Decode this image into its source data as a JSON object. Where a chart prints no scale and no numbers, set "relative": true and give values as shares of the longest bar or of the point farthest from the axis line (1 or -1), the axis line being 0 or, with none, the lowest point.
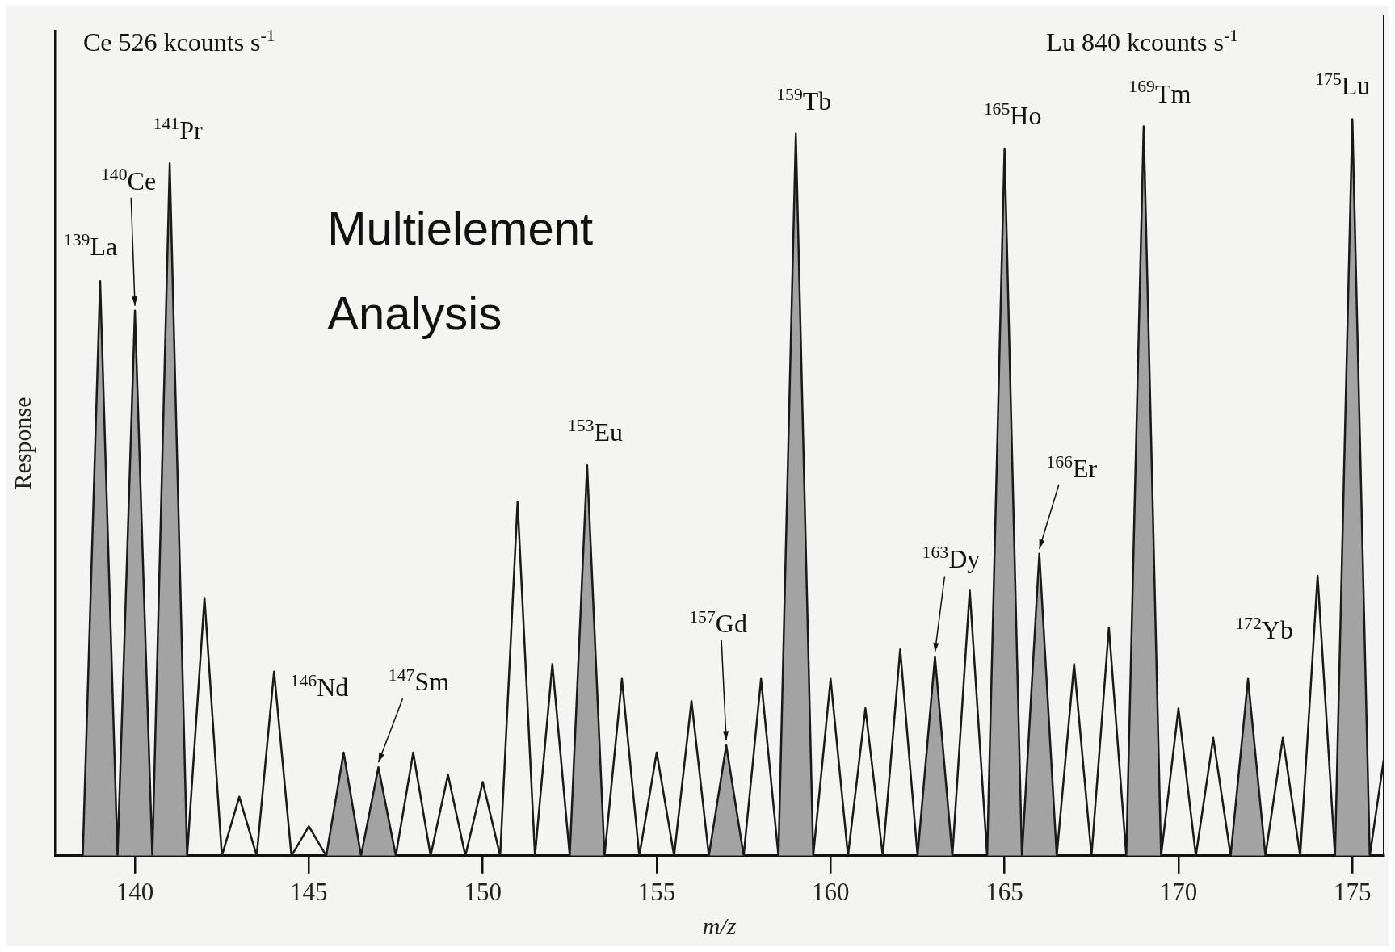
{
  "chart_data": {
    "type": "line",
    "title": "Multielement Analysis",
    "xlabel": "m/z",
    "ylabel": "Response",
    "relative": true,
    "xlim": [
      137.7,
      175.9
    ],
    "xticks": [
      140,
      145,
      150,
      155,
      160,
      165,
      170,
      175
    ],
    "grid": false,
    "legend": false,
    "marker": "none",
    "series": [
      {
        "type": "line",
        "color": "#1a1a1a",
        "x": [
          138.2,
          138.5,
          139,
          139.5,
          140,
          140.5,
          141,
          141.5,
          142,
          142.5,
          143,
          143.5,
          144,
          144.5,
          145,
          145.5,
          146,
          146.5,
          147,
          147.5,
          148,
          148.5,
          149,
          149.5,
          150,
          150.5,
          151,
          151.5,
          152,
          152.5,
          153,
          153.5,
          154,
          154.5,
          155,
          155.5,
          156,
          156.5,
          157,
          157.5,
          158,
          158.5,
          159,
          159.5,
          160,
          160.5,
          161,
          161.5,
          162,
          162.5,
          163,
          163.5,
          164,
          164.5,
          165,
          165.5,
          166,
          166.5,
          167,
          167.5,
          168,
          168.5,
          169,
          169.5,
          170,
          170.5,
          171,
          171.5,
          172,
          172.5,
          173,
          173.5,
          174,
          174.5,
          175,
          175.5,
          175.9
        ],
        "values": [
          0,
          0,
          0.78,
          0,
          0.74,
          0,
          0.94,
          0,
          0.35,
          0,
          0.08,
          0,
          0.25,
          0,
          0.04,
          0,
          0.14,
          0,
          0.12,
          0,
          0.14,
          0,
          0.11,
          0,
          0.1,
          0,
          0.48,
          0,
          0.26,
          0,
          0.53,
          0,
          0.24,
          0,
          0.14,
          0,
          0.21,
          0,
          0.15,
          0,
          0.24,
          0,
          0.98,
          0,
          0.24,
          0,
          0.2,
          0,
          0.28,
          0,
          0.27,
          0,
          0.36,
          0,
          0.96,
          0,
          0.41,
          0,
          0.26,
          0,
          0.31,
          0,
          0.99,
          0,
          0.2,
          0,
          0.16,
          0,
          0.24,
          0,
          0.16,
          0,
          0.38,
          0,
          1.0,
          0,
          0.13
        ]
      },
      {
        "type": "area",
        "color": "#a3a3a3",
        "x": [
          138.5,
          139,
          139.5,
          140,
          140.5,
          141,
          141.5,
          145.5,
          146,
          146.5,
          147,
          147.5,
          152.5,
          153,
          153.5,
          156.5,
          157,
          157.5,
          158.5,
          159,
          159.5,
          162.5,
          163,
          163.5,
          164.5,
          165,
          165.5,
          166,
          166.5,
          168.5,
          169,
          169.5,
          171.5,
          172,
          172.5,
          174.5,
          175,
          175.5
        ],
        "values": [
          0,
          0.78,
          0,
          0.74,
          0,
          0.94,
          0,
          0,
          0.14,
          0,
          0.12,
          0,
          0,
          0.53,
          0,
          0,
          0.15,
          0,
          0,
          0.98,
          0,
          0,
          0.27,
          0,
          0,
          0.96,
          0,
          0.41,
          0,
          0,
          0.99,
          0,
          0,
          0.24,
          0,
          0,
          1.0,
          0
        ]
      }
    ],
    "annotations": [
      "Ce 526 kcounts s$^{-1}$",
      "Lu 840 kcounts s$^{-1}$",
      {
        "text": "$^{139}$La",
        "x": 139,
        "y": 0.78
      },
      {
        "text": "$^{140}$Ce",
        "x": 140,
        "y": 0.74
      },
      {
        "text": "$^{141}$Pr",
        "x": 141,
        "y": 0.94
      },
      {
        "text": "$^{146}$Nd",
        "x": 146,
        "y": 0.14
      },
      {
        "text": "$^{147}$Sm",
        "x": 147,
        "y": 0.12
      },
      {
        "text": "$^{153}$Eu",
        "x": 153,
        "y": 0.53
      },
      {
        "text": "$^{157}$Gd",
        "x": 157,
        "y": 0.15
      },
      {
        "text": "$^{159}$Tb",
        "x": 159,
        "y": 0.98
      },
      {
        "text": "$^{163}$Dy",
        "x": 163,
        "y": 0.27
      },
      {
        "text": "$^{165}$Ho",
        "x": 165,
        "y": 0.96
      },
      {
        "text": "$^{166}$Er",
        "x": 166,
        "y": 0.41
      },
      {
        "text": "$^{169}$Tm",
        "x": 169,
        "y": 0.99
      },
      {
        "text": "$^{172}$Yb",
        "x": 172,
        "y": 0.24
      },
      {
        "text": "$^{175}$Lu",
        "x": 175,
        "y": 1.0
      }
    ]
  }
}
